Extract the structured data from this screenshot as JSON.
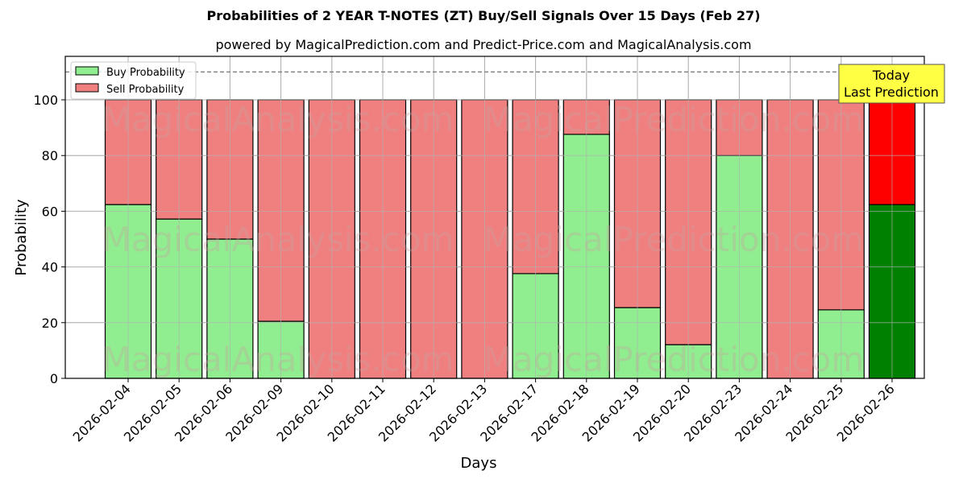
{
  "chart_data": {
    "type": "bar",
    "stacked": true,
    "title": "Probabilities of 2 YEAR T-NOTES (ZT) Buy/Sell Signals Over 15 Days (Feb 27)",
    "subtitle": "powered by MagicalPrediction.com and Predict-Price.com and MagicalAnalysis.com",
    "xlabel": "Days",
    "ylabel": "Probability",
    "ylim": [
      0,
      115
    ],
    "yticks": [
      0,
      20,
      40,
      60,
      80,
      100
    ],
    "grid": true,
    "reference_line": 110,
    "legend_position": "upper left",
    "categories": [
      "2026-02-04",
      "2026-02-05",
      "2026-02-06",
      "2026-02-09",
      "2026-02-10",
      "2026-02-11",
      "2026-02-12",
      "2026-02-13",
      "2026-02-17",
      "2026-02-18",
      "2026-02-19",
      "2026-02-20",
      "2026-02-23",
      "2026-02-24",
      "2026-02-25",
      "2026-02-26"
    ],
    "series": [
      {
        "name": "Buy Probability",
        "color": "#90ee90",
        "values": [
          62.4,
          57.2,
          50.0,
          20.5,
          0,
          0,
          0,
          0,
          37.6,
          87.6,
          25.4,
          12.1,
          80.0,
          0,
          24.6,
          62.4
        ]
      },
      {
        "name": "Sell Probability",
        "color": "#f08080",
        "values": [
          37.6,
          42.8,
          50.0,
          79.5,
          100,
          100,
          100,
          100,
          62.4,
          12.4,
          74.6,
          87.9,
          20.0,
          100,
          75.4,
          37.6
        ]
      }
    ],
    "highlight": {
      "index": 15,
      "buy_color": "#008000",
      "sell_color": "#ff0000"
    },
    "annotation": {
      "line1": "Today",
      "line2": "Last Prediction",
      "bg": "#ffff44"
    },
    "watermarks": [
      "MagicalAnalysis.com",
      "MagicalPrediction.com"
    ]
  }
}
